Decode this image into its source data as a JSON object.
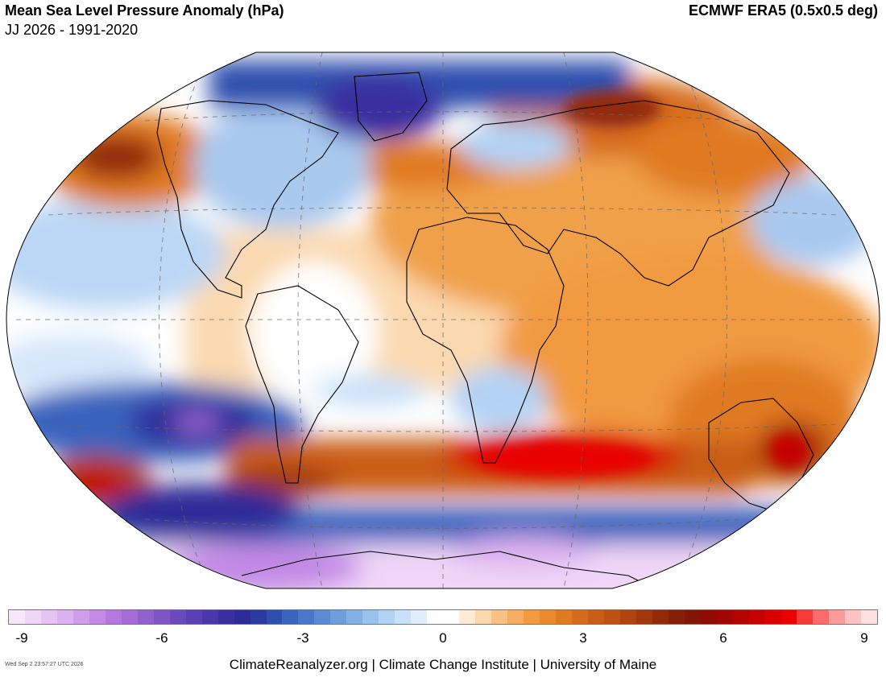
{
  "header": {
    "title": "Mean Sea Level Pressure Anomaly (hPa)",
    "subtitle": "JJ 2026 - 1991-2020",
    "dataset": "ECMWF ERA5 (0.5x0.5 deg)"
  },
  "colorbar": {
    "ticks": [
      "-9",
      "-6",
      "-3",
      "0",
      "3",
      "6",
      "9"
    ],
    "colors": [
      "#f7e6fa",
      "#efd5f7",
      "#e6c3f3",
      "#dcb1ef",
      "#d09deb",
      "#c389e5",
      "#b478de",
      "#a56cd6",
      "#9160cd",
      "#7d55c5",
      "#6a4abd",
      "#5a40b4",
      "#4a37aa",
      "#3b2fa0",
      "#2e2a98",
      "#2a3a9e",
      "#2f4fae",
      "#3a64bd",
      "#4a78c9",
      "#5c8bd3",
      "#6f9edd",
      "#85b0e6",
      "#9bc1ee",
      "#b2d2f4",
      "#c8e0f9",
      "#dfedfc",
      "#ffffff",
      "#ffffff",
      "#fdebd6",
      "#fbd7ae",
      "#f8c287",
      "#f5ad62",
      "#f19a40",
      "#ea8a2c",
      "#e07a22",
      "#d56b1c",
      "#c95d17",
      "#bd5013",
      "#b0430f",
      "#a1360c",
      "#922a09",
      "#842006",
      "#821504",
      "#8f0b02",
      "#a00602",
      "#b30301",
      "#c50201",
      "#d80000",
      "#ea0000",
      "#f53a3a",
      "#f86c6c",
      "#fa9a9a",
      "#fcc3c3",
      "#fde1e1"
    ]
  },
  "footer": {
    "timestamp": "Wed Sep  2 23:57:27 UTC 2026",
    "credits": "ClimateReanalyzer.org | Climate Change Institute | University of Maine"
  }
}
